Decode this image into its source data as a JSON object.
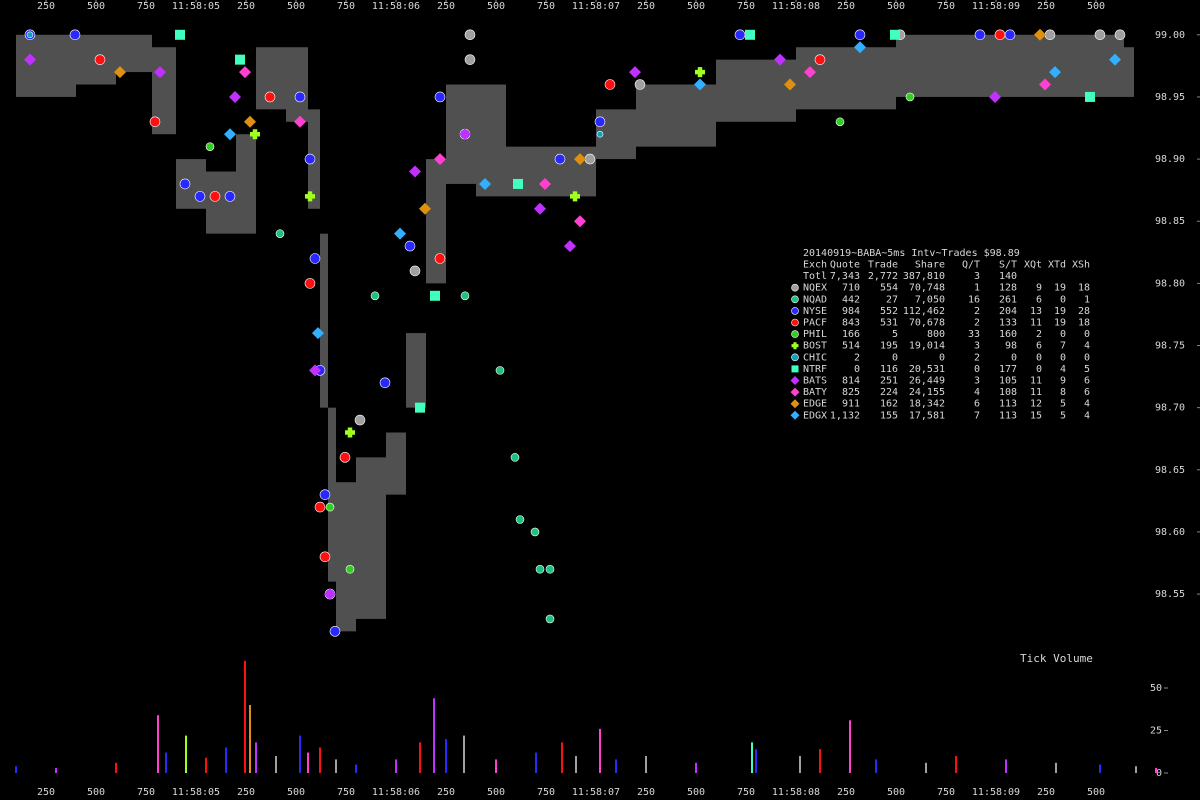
{
  "chart_data": [
    {
      "type": "scatter",
      "xlim": [
        4020,
        10020
      ],
      "xticks": [
        {
          "value": 4250,
          "label": "250"
        },
        {
          "value": 4500,
          "label": "500"
        },
        {
          "value": 4750,
          "label": "750"
        },
        {
          "value": 5000,
          "label": "11:58:05"
        },
        {
          "value": 5250,
          "label": "250"
        },
        {
          "value": 5500,
          "label": "500"
        },
        {
          "value": 5750,
          "label": "750"
        },
        {
          "value": 6000,
          "label": "11:58:06"
        },
        {
          "value": 6250,
          "label": "250"
        },
        {
          "value": 6500,
          "label": "500"
        },
        {
          "value": 6750,
          "label": "750"
        },
        {
          "value": 7000,
          "label": "11:58:07"
        },
        {
          "value": 7250,
          "label": "250"
        },
        {
          "value": 7500,
          "label": "500"
        },
        {
          "value": 7750,
          "label": "750"
        },
        {
          "value": 8000,
          "label": "11:58:08"
        },
        {
          "value": 8250,
          "label": "250"
        },
        {
          "value": 8500,
          "label": "500"
        },
        {
          "value": 8750,
          "label": "750"
        },
        {
          "value": 9000,
          "label": "11:58:09"
        },
        {
          "value": 9250,
          "label": "250"
        },
        {
          "value": 9500,
          "label": "500"
        }
      ],
      "ylim": [
        98.505,
        99.028
      ],
      "yticks": [
        98.55,
        {
          "value": 98.6,
          "label": "98.60"
        },
        98.65,
        {
          "value": 98.7,
          "label": "98.70"
        },
        98.75,
        {
          "value": 98.8,
          "label": "98.80"
        },
        98.85,
        {
          "value": 98.9,
          "label": "98.90"
        },
        98.95,
        {
          "value": 99,
          "label": "99.00"
        }
      ],
      "nbbo": {
        "color": "#505050",
        "x": [
          4100,
          4400,
          4600,
          4780,
          4900,
          5050,
          5200,
          5300,
          5450,
          5560,
          5620,
          5660,
          5700,
          5800,
          5950,
          6050,
          6150,
          6250,
          6400,
          6550,
          6800,
          7000,
          7200,
          7600,
          8000,
          8500,
          9000,
          9500,
          9640
        ],
        "ask": [
          99.0,
          99.0,
          99.0,
          98.99,
          98.9,
          98.89,
          98.92,
          98.99,
          98.99,
          98.94,
          98.84,
          98.7,
          98.64,
          98.66,
          98.68,
          98.76,
          98.9,
          98.96,
          98.96,
          98.91,
          98.91,
          98.94,
          98.96,
          98.98,
          98.99,
          99.0,
          99.0,
          99.0,
          98.99
        ],
        "bid": [
          98.95,
          98.96,
          98.97,
          98.92,
          98.86,
          98.84,
          98.84,
          98.94,
          98.93,
          98.86,
          98.7,
          98.56,
          98.52,
          98.53,
          98.63,
          98.7,
          98.8,
          98.88,
          98.87,
          98.87,
          98.87,
          98.9,
          98.91,
          98.93,
          98.94,
          98.95,
          98.95,
          98.95,
          98.95
        ]
      },
      "series": [
        {
          "color": "#a0a0a0",
          "marker": "circle",
          "size": 5,
          "x": [
            6370,
            6370,
            6095,
            6970,
            7220,
            8520,
            9270,
            9520,
            9620,
            5820
          ],
          "values": [
            99.0,
            98.98,
            98.81,
            98.9,
            98.96,
            99.0,
            99.0,
            99.0,
            99.0,
            98.69
          ]
        },
        {
          "color": "#20c080",
          "marker": "circle",
          "size": 4,
          "x": [
            5420,
            5895,
            6345,
            6520,
            6595,
            6620,
            6695,
            6720,
            6770,
            6770
          ],
          "values": [
            98.84,
            98.79,
            98.79,
            98.73,
            98.66,
            98.61,
            98.6,
            98.57,
            98.57,
            98.53
          ]
        },
        {
          "color": "#2828ff",
          "marker": "circle",
          "size": 5,
          "x": [
            4170,
            4395,
            4945,
            5020,
            5170,
            5520,
            5570,
            5595,
            5620,
            5645,
            5670,
            5695,
            5945,
            6070,
            6220,
            6345,
            6820,
            7020,
            7720,
            8320,
            8920,
            9070
          ],
          "values": [
            99.0,
            99.0,
            98.88,
            98.87,
            98.87,
            98.95,
            98.9,
            98.82,
            98.73,
            98.63,
            98.55,
            98.52,
            98.72,
            98.83,
            98.95,
            98.92,
            98.9,
            98.93,
            99.0,
            99.0,
            99.0,
            99.0
          ]
        },
        {
          "color": "#ff1010",
          "marker": "circle",
          "size": 5,
          "x": [
            4520,
            4795,
            5095,
            5370,
            5570,
            5620,
            5645,
            5745,
            6220,
            7070,
            8120,
            9020
          ],
          "values": [
            98.98,
            98.93,
            98.87,
            98.95,
            98.8,
            98.62,
            98.58,
            98.66,
            98.82,
            98.96,
            98.98,
            99.0
          ]
        },
        {
          "color": "#30d020",
          "marker": "circle",
          "size": 4,
          "x": [
            5070,
            5670,
            5770,
            8220,
            8570
          ],
          "values": [
            98.91,
            98.62,
            98.57,
            98.93,
            98.95
          ]
        },
        {
          "color": "#a0ff20",
          "marker": "cross",
          "size": 5,
          "x": [
            5570,
            5295,
            5770,
            6895,
            7520
          ],
          "values": [
            98.87,
            98.92,
            98.68,
            98.87,
            98.97
          ]
        },
        {
          "color": "#10a0c0",
          "marker": "circle",
          "size": 3,
          "x": [
            4170,
            7020
          ],
          "values": [
            99.0,
            98.92
          ]
        },
        {
          "color": "#40ffc0",
          "marker": "square",
          "size": 5,
          "x": [
            4920,
            5220,
            6120,
            6610,
            7770,
            8495,
            9470,
            6195
          ],
          "values": [
            99.0,
            98.98,
            98.7,
            98.88,
            99.0,
            99.0,
            98.95,
            98.79
          ]
        },
        {
          "color": "#c030ff",
          "marker": "diamond",
          "size": 5,
          "x": [
            4170,
            4820,
            5195,
            5595,
            5670,
            6095,
            6345,
            6720,
            6870,
            7195,
            7920,
            8995
          ],
          "values": [
            98.98,
            98.97,
            98.95,
            98.73,
            98.55,
            98.89,
            98.92,
            98.86,
            98.83,
            98.97,
            98.98,
            98.95
          ]
        },
        {
          "color": "#ff40d0",
          "marker": "diamond",
          "size": 5,
          "x": [
            5245,
            5520,
            6220,
            6745,
            6920,
            8070,
            9245
          ],
          "values": [
            98.97,
            98.93,
            98.9,
            98.88,
            98.85,
            98.97,
            98.96
          ]
        },
        {
          "color": "#e09010",
          "marker": "diamond",
          "size": 5,
          "x": [
            4620,
            5270,
            6145,
            6920,
            7970,
            9220
          ],
          "values": [
            98.97,
            98.93,
            98.86,
            98.9,
            98.96,
            99.0
          ]
        },
        {
          "color": "#30b0ff",
          "marker": "diamond",
          "size": 5,
          "x": [
            5170,
            5610,
            6020,
            6445,
            7520,
            8320,
            9295,
            9595
          ],
          "values": [
            98.92,
            98.76,
            98.84,
            98.88,
            98.96,
            98.99,
            98.97,
            98.98
          ]
        }
      ]
    },
    {
      "type": "bar",
      "title": "Tick Volume",
      "xlim": [
        4020,
        10020
      ],
      "ylim": [
        -2,
        72
      ],
      "yticks": [
        0,
        25,
        50
      ],
      "x": [
        4100,
        4300,
        4600,
        4810,
        4850,
        4950,
        5050,
        5150,
        5245,
        5270,
        5300,
        5400,
        5520,
        5560,
        5620,
        5700,
        5800,
        6000,
        6120,
        6190,
        6250,
        6340,
        6500,
        6700,
        6830,
        6900,
        7020,
        7100,
        7250,
        7500,
        7780,
        7800,
        8020,
        8120,
        8270,
        8400,
        8650,
        8800,
        9050,
        9300,
        9520,
        9700,
        9800
      ],
      "values": [
        4,
        3,
        6,
        34,
        12,
        22,
        9,
        15,
        66,
        40,
        18,
        10,
        22,
        12,
        15,
        8,
        5,
        8,
        18,
        44,
        20,
        22,
        8,
        12,
        18,
        10,
        26,
        8,
        10,
        6,
        18,
        14,
        10,
        14,
        31,
        8,
        6,
        10,
        8,
        6,
        5,
        4,
        3
      ],
      "colors": [
        "#2828ff",
        "#c030ff",
        "#ff1010",
        "#ff40d0",
        "#2828ff",
        "#a0ff20",
        "#ff1010",
        "#2828ff",
        "#ff1010",
        "#e09010",
        "#c030ff",
        "#a0a0a0",
        "#2828ff",
        "#ff40d0",
        "#ff1010",
        "#a0a0a0",
        "#2828ff",
        "#c030ff",
        "#ff1010",
        "#c030ff",
        "#2828ff",
        "#a0a0a0",
        "#ff40d0",
        "#2828ff",
        "#ff1010",
        "#a0a0a0",
        "#ff40d0",
        "#2828ff",
        "#a0a0a0",
        "#c030ff",
        "#40ffc0",
        "#2828ff",
        "#a0a0a0",
        "#ff1010",
        "#ff40d0",
        "#2828ff",
        "#a0a0a0",
        "#ff1010",
        "#c030ff",
        "#a0a0a0",
        "#2828ff",
        "#a0a0a0",
        "#ff40d0"
      ]
    }
  ],
  "stats_table": {
    "title": "20140919~BABA~5ms Intv~Trades $98.89",
    "columns": [
      "Exch",
      "Quote",
      "Trade",
      "Share",
      "Q/T",
      "S/T",
      "XQt",
      "XTd",
      "XSh"
    ],
    "rows": [
      [
        "Totl",
        "7,343",
        "2,772",
        "387,810",
        "3",
        "140"
      ],
      [
        "NQEX",
        "710",
        "554",
        "70,748",
        "1",
        "128",
        "9",
        "19",
        "18"
      ],
      [
        "NQAD",
        "442",
        "27",
        "7,050",
        "16",
        "261",
        "6",
        "0",
        "1"
      ],
      [
        "NYSE",
        "984",
        "552",
        "112,462",
        "2",
        "204",
        "13",
        "19",
        "28"
      ],
      [
        "PACF",
        "843",
        "531",
        "70,678",
        "2",
        "133",
        "11",
        "19",
        "18"
      ],
      [
        "PHIL",
        "166",
        "5",
        "800",
        "33",
        "160",
        "2",
        "0",
        "0"
      ],
      [
        "BOST",
        "514",
        "195",
        "19,014",
        "3",
        "98",
        "6",
        "7",
        "4"
      ],
      [
        "CHIC",
        "2",
        "0",
        "0",
        "2",
        "0",
        "0",
        "0",
        "0"
      ],
      [
        "NTRF",
        "0",
        "116",
        "20,531",
        "0",
        "177",
        "0",
        "4",
        "5"
      ],
      [
        "BATS",
        "814",
        "251",
        "26,449",
        "3",
        "105",
        "11",
        "9",
        "6"
      ],
      [
        "BATY",
        "825",
        "224",
        "24,155",
        "4",
        "108",
        "11",
        "8",
        "6"
      ],
      [
        "EDGE",
        "911",
        "162",
        "18,342",
        "6",
        "113",
        "12",
        "5",
        "4"
      ],
      [
        "EDGX",
        "1,132",
        "155",
        "17,581",
        "7",
        "113",
        "15",
        "5",
        "4"
      ]
    ]
  }
}
